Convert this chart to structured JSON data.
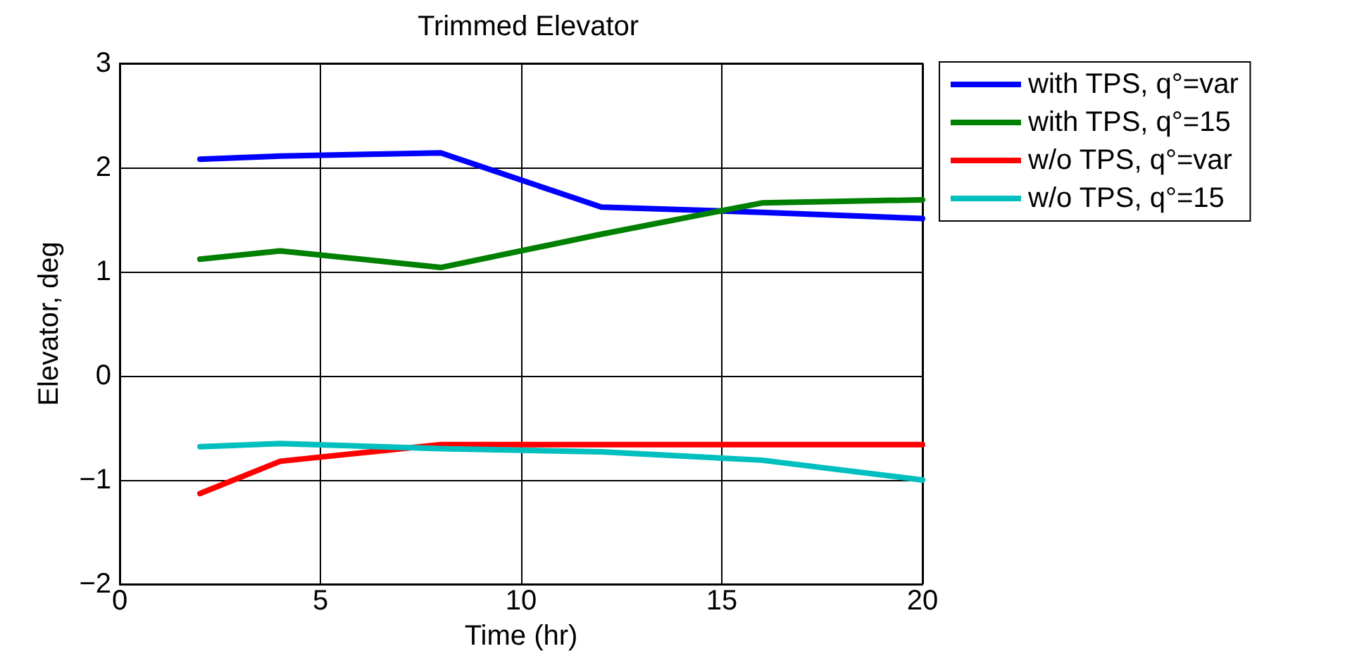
{
  "chart_data": {
    "type": "line",
    "title": "Trimmed Elevator",
    "xlabel": "Time (hr)",
    "ylabel": "Elevator, deg",
    "x": [
      2,
      4,
      8,
      12,
      16,
      20
    ],
    "series": [
      {
        "name": "with TPS, q°=var",
        "color": "#0000ff",
        "values": [
          2.08,
          2.11,
          2.14,
          1.62,
          1.57,
          1.51
        ]
      },
      {
        "name": "with TPS, q°=15",
        "color": "#008000",
        "values": [
          1.12,
          1.2,
          1.04,
          1.36,
          1.66,
          1.69
        ]
      },
      {
        "name": "w/o TPS, q°=var",
        "color": "#ff0000",
        "values": [
          -1.13,
          -0.82,
          -0.66,
          -0.66,
          -0.66,
          -0.66
        ]
      },
      {
        "name": "w/o TPS, q°=15",
        "color": "#00bfbf",
        "values": [
          -0.68,
          -0.65,
          -0.7,
          -0.73,
          -0.81,
          -1.0
        ]
      }
    ],
    "xlim": [
      0,
      20
    ],
    "xticks": [
      0,
      5,
      10,
      15,
      20
    ],
    "ylim": [
      -2,
      3
    ],
    "yticks": [
      {
        "value": -2,
        "label": "−2"
      },
      {
        "value": -1,
        "label": "−1"
      },
      0,
      1,
      2,
      3
    ],
    "grid": true,
    "legend": "top right",
    "marker": "none",
    "line_style": "solid"
  }
}
